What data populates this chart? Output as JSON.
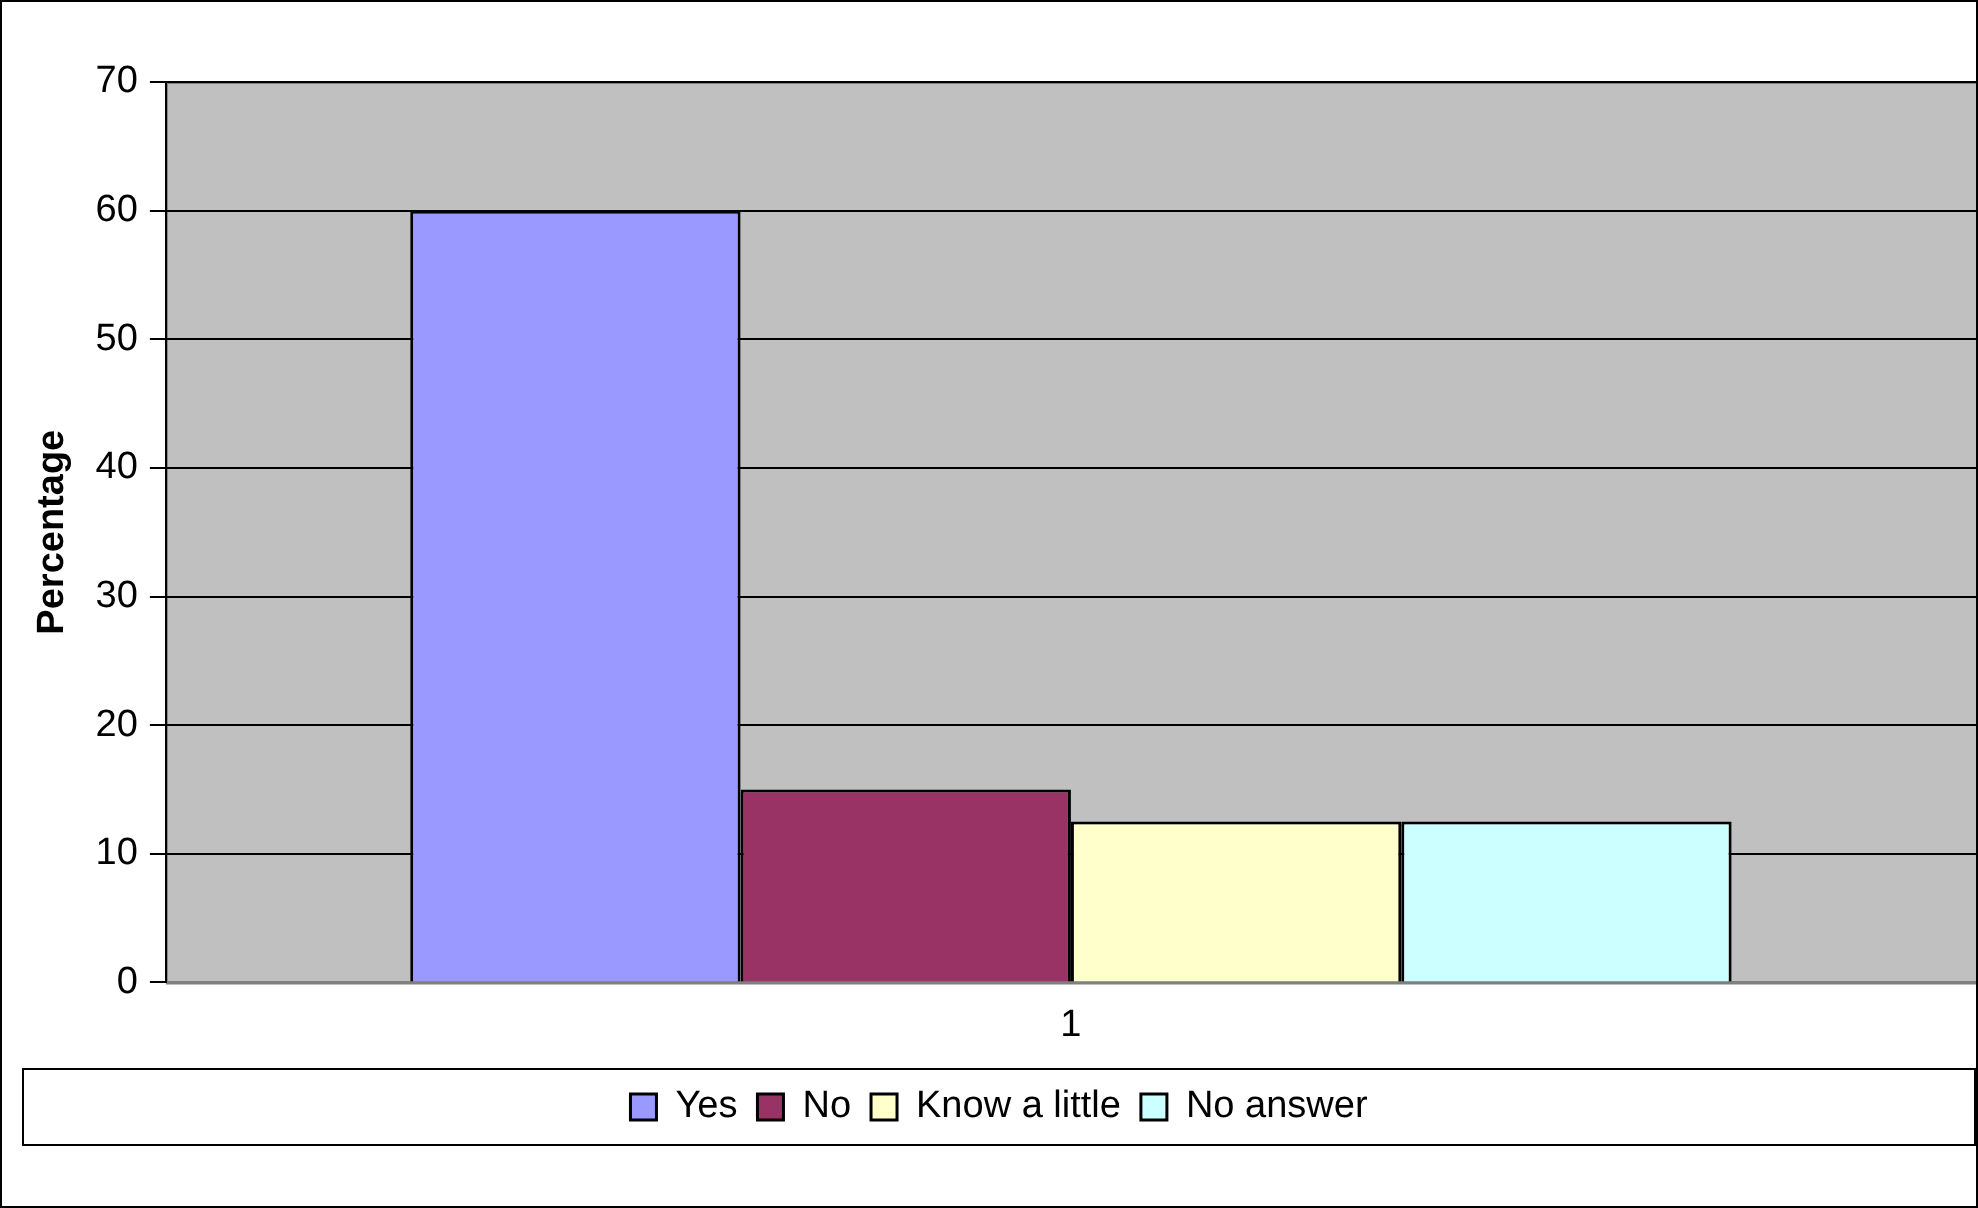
{
  "chart_data": {
    "type": "bar",
    "ylabel": "Percentage",
    "categories": [
      "1"
    ],
    "series": [
      {
        "name": "Yes",
        "color": "#9999ff",
        "values": [
          60
        ]
      },
      {
        "name": "No",
        "color": "#993366",
        "values": [
          15
        ]
      },
      {
        "name": "Know a little",
        "color": "#ffffcc",
        "values": [
          12.5
        ]
      },
      {
        "name": "No answer",
        "color": "#ccffff",
        "values": [
          12.5
        ]
      }
    ],
    "ylim": [
      0,
      70
    ],
    "yticks": [
      0,
      10,
      20,
      30,
      40,
      50,
      60,
      70
    ],
    "grid": "y",
    "legend": "bottom"
  }
}
